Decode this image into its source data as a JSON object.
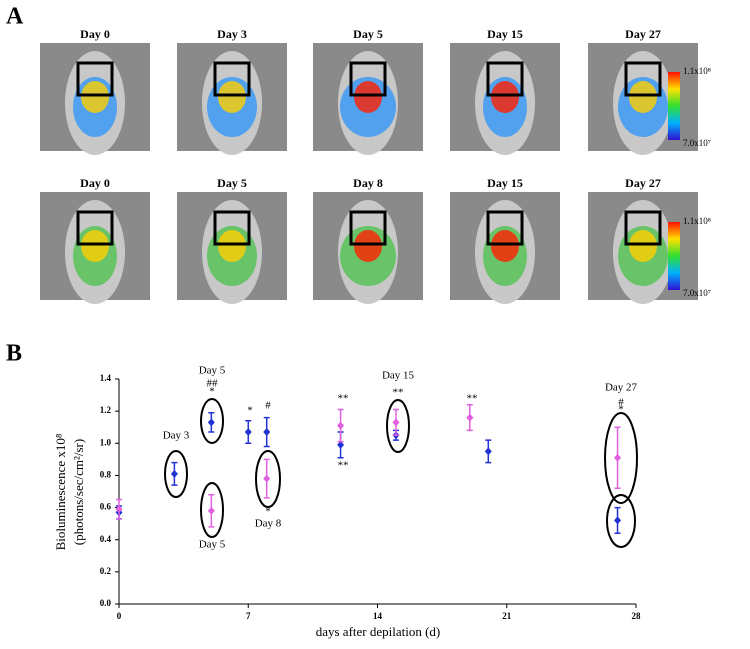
{
  "panel_a": {
    "label": "A",
    "row_1": [
      "Day 0",
      "Day 3",
      "Day 5",
      "Day 15",
      "Day 27"
    ],
    "row_2": [
      "Day 0",
      "Day 5",
      "Day 8",
      "Day 15",
      "Day 27"
    ],
    "scale_max": "1.1x10⁸",
    "scale_min": "7.0x10⁷"
  },
  "chart_data": {
    "type": "scatter",
    "panel_label": "B",
    "x_label": "days after depilation (d)",
    "y_label": [
      "Bioluminescence x10⁸",
      "(photons/sec/cm²/sr)"
    ],
    "xlim": [
      0,
      28
    ],
    "xticks": [
      0,
      7,
      14,
      21,
      28
    ],
    "ylim": [
      0,
      1.4
    ],
    "yticks": [
      {
        "value": 0,
        "label": "0.0"
      },
      0.2,
      0.4,
      0.6,
      0.8,
      {
        "value": 1,
        "label": "1.0"
      },
      1.2,
      1.4
    ],
    "series": [
      {
        "color": "#2233d6",
        "x": [
          0,
          3,
          5,
          7,
          8,
          12,
          15,
          20,
          27
        ],
        "values": [
          0.57,
          0.81,
          1.13,
          1.07,
          1.07,
          0.99,
          1.05,
          0.95,
          0.52
        ],
        "errors": [
          0.04,
          0.07,
          0.06,
          0.07,
          0.09,
          0.08,
          0.03,
          0.07,
          0.08
        ]
      },
      {
        "color": "#e060e0",
        "x": [
          0,
          5,
          8,
          12,
          15,
          19,
          27
        ],
        "values": [
          0.59,
          0.58,
          0.78,
          1.11,
          1.13,
          1.16,
          0.91
        ],
        "errors": [
          0.06,
          0.1,
          0.12,
          0.1,
          0.08,
          0.08,
          0.19
        ]
      }
    ],
    "annotations": [
      "Day 3",
      "Day 5",
      "##",
      "*",
      "*",
      "#",
      "**",
      "**",
      "Day 15",
      "**",
      "**",
      "Day 27",
      "#",
      "*",
      "Day 5",
      "*",
      "Day 8"
    ]
  }
}
